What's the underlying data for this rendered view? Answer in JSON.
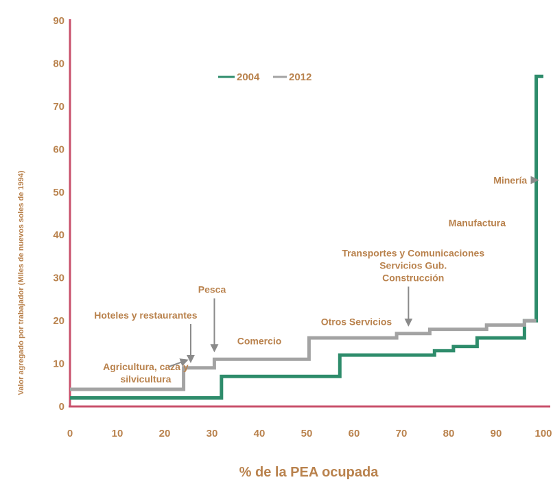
{
  "chart_data": {
    "type": "line",
    "step": true,
    "xlabel": "% de la PEA ocupada",
    "ylabel": "Valor agregado por trabajador (Miles de nuevos soles de 1994)",
    "xlim": [
      0,
      100
    ],
    "ylim": [
      0,
      90
    ],
    "xticks": [
      "0",
      "10",
      "20",
      "30",
      "40",
      "50",
      "60",
      "70",
      "80",
      "90",
      "100"
    ],
    "yticks": [
      "0",
      "10",
      "20",
      "30",
      "40",
      "50",
      "60",
      "70",
      "80",
      "90"
    ],
    "grid": false,
    "legend_position": "top-center",
    "colors": {
      "axes": "#c8506b",
      "text": "#b9824d",
      "series_2004": "#2e8c6b",
      "series_2012": "#a3a3a3"
    },
    "series": [
      {
        "name": "2004",
        "color": "#2e8c6b",
        "points": [
          [
            0,
            2
          ],
          [
            32,
            2
          ],
          [
            32,
            7
          ],
          [
            57,
            7
          ],
          [
            57,
            12
          ],
          [
            77,
            12
          ],
          [
            77,
            13
          ],
          [
            81,
            13
          ],
          [
            81,
            14
          ],
          [
            86,
            14
          ],
          [
            86,
            16
          ],
          [
            96,
            16
          ],
          [
            96,
            20
          ],
          [
            98.5,
            20
          ],
          [
            98.5,
            77
          ],
          [
            100,
            77
          ]
        ]
      },
      {
        "name": "2012",
        "color": "#a3a3a3",
        "points": [
          [
            0,
            4
          ],
          [
            24,
            4
          ],
          [
            24,
            9
          ],
          [
            30.5,
            9
          ],
          [
            30.5,
            11
          ],
          [
            50.5,
            11
          ],
          [
            50.5,
            16
          ],
          [
            69,
            16
          ],
          [
            69,
            17
          ],
          [
            76,
            17
          ],
          [
            76,
            18
          ],
          [
            88,
            18
          ],
          [
            88,
            19
          ],
          [
            96,
            19
          ],
          [
            96,
            20
          ],
          [
            98.5,
            20
          ]
        ]
      }
    ],
    "annotations": [
      {
        "lines": [
          "Agricultura, caza y",
          "silvicultura"
        ],
        "x": 16,
        "y": 8.5,
        "arrow_to": [
          25,
          10
        ]
      },
      {
        "lines": [
          "Hoteles y restaurantes"
        ],
        "x": 16,
        "y": 20.5,
        "arrow_to": [
          25.5,
          10.5
        ]
      },
      {
        "lines": [
          "Pesca"
        ],
        "x": 30,
        "y": 26.5,
        "arrow_to": [
          30.5,
          13
        ]
      },
      {
        "lines": [
          "Comercio"
        ],
        "x": 40,
        "y": 14.5
      },
      {
        "lines": [
          "Otros Servicios"
        ],
        "x": 60.5,
        "y": 19
      },
      {
        "lines": [
          "Transportes y Comunicaciones",
          "Servicios Gub.",
          "Construcción"
        ],
        "x": 72.5,
        "y": 35,
        "arrow_to": [
          71.5,
          19
        ]
      },
      {
        "lines": [
          "Manufactura"
        ],
        "x": 86,
        "y": 42
      },
      {
        "lines": [
          "Minería"
        ],
        "x": 93,
        "y": 52,
        "arrow_to": [
          99,
          52
        ]
      }
    ]
  }
}
